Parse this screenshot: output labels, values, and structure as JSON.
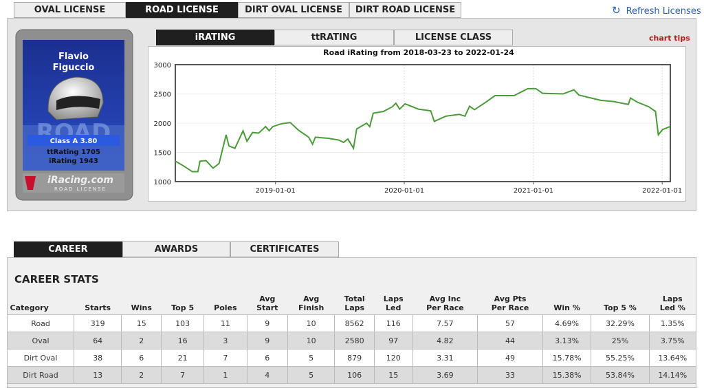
{
  "top_tabs": [
    "OVAL LICENSE",
    "ROAD LICENSE",
    "DIRT OVAL LICENSE",
    "DIRT ROAD LICENSE"
  ],
  "refresh": "Refresh Licenses",
  "card": {
    "name": [
      "Flavio",
      "Figuccio"
    ],
    "watermark": "ROAD",
    "class": "Class A 3.80",
    "ttrating": "ttRating 1705",
    "irating": "iRating 1943",
    "brand": "iRacing.com",
    "brand_sub": "ROAD LICENSE"
  },
  "chart_tabs": [
    "iRATING",
    "ttRATING",
    "LICENSE CLASS"
  ],
  "chart_tips": "chart tips",
  "chart_data": {
    "type": "line",
    "title": "Road iRating from 2018-03-23 to 2022-01-24",
    "color": "#4a9a3a",
    "grid": true,
    "x": [
      "2018-03-23",
      "2018-04-15",
      "2018-05-10",
      "2018-05-26",
      "2018-06-01",
      "2018-06-18",
      "2018-07-08",
      "2018-07-25",
      "2018-08-14",
      "2018-08-22",
      "2018-09-08",
      "2018-10-01",
      "2018-10-12",
      "2018-10-28",
      "2018-11-14",
      "2018-12-04",
      "2018-12-14",
      "2018-12-24",
      "2019-01-18",
      "2019-02-12",
      "2019-03-07",
      "2019-04-05",
      "2019-04-16",
      "2019-04-24",
      "2019-06-01",
      "2019-06-30",
      "2019-07-13",
      "2019-07-25",
      "2019-08-10",
      "2019-08-19",
      "2019-09-16",
      "2019-09-25",
      "2019-10-05",
      "2019-11-03",
      "2019-11-28",
      "2019-12-08",
      "2019-12-19",
      "2020-01-03",
      "2020-02-10",
      "2020-03-16",
      "2020-03-26",
      "2020-04-28",
      "2020-06-05",
      "2020-06-21",
      "2020-07-04",
      "2020-07-18",
      "2020-08-22",
      "2020-09-14",
      "2020-11-07",
      "2020-12-16",
      "2021-01-08",
      "2021-01-27",
      "2021-03-26",
      "2021-04-26",
      "2021-05-10",
      "2021-07-11",
      "2021-08-15",
      "2021-09-27",
      "2021-10-03",
      "2021-10-22",
      "2021-11-24",
      "2021-12-13",
      "2021-12-21",
      "2022-01-02",
      "2022-01-24"
    ],
    "values": [
      1350,
      1270,
      1170,
      1170,
      1350,
      1360,
      1230,
      1310,
      1800,
      1610,
      1570,
      1870,
      1690,
      1840,
      1830,
      1940,
      1870,
      1940,
      1990,
      2010,
      1880,
      1760,
      1640,
      1760,
      1740,
      1710,
      1670,
      1730,
      1570,
      1900,
      2000,
      1940,
      2170,
      2200,
      2280,
      2340,
      2240,
      2330,
      2240,
      2210,
      2030,
      2120,
      2150,
      2120,
      2290,
      2230,
      2370,
      2470,
      2470,
      2590,
      2590,
      2510,
      2500,
      2570,
      2480,
      2390,
      2370,
      2320,
      2430,
      2360,
      2280,
      2200,
      1800,
      1890,
      1943
    ],
    "xlim": [
      "2018-03-23",
      "2022-01-24"
    ],
    "xticks": [
      "2019-01-01",
      "2020-01-01",
      "2021-01-01",
      "2022-01-01"
    ],
    "ylim": [
      1000,
      3000
    ],
    "yticks": [
      1000,
      1500,
      2000,
      2500,
      3000
    ]
  },
  "career_tabs": [
    "CAREER",
    "AWARDS",
    "CERTIFICATES"
  ],
  "section_title": "CAREER STATS",
  "table": {
    "header": [
      [
        "Category"
      ],
      [
        "Starts"
      ],
      [
        "Wins"
      ],
      [
        "Top 5"
      ],
      [
        "Poles"
      ],
      [
        "Avg",
        "Start"
      ],
      [
        "Avg",
        "Finish"
      ],
      [
        "Total",
        "Laps"
      ],
      [
        "Laps",
        "Led"
      ],
      [
        "Avg Inc",
        "Per Race"
      ],
      [
        "Avg Pts",
        "Per Race"
      ],
      [
        "Win %"
      ],
      [
        "Top 5 %"
      ],
      [
        "Laps",
        "Led %"
      ]
    ],
    "rows": [
      [
        "Road",
        "319",
        "15",
        "103",
        "11",
        "9",
        "10",
        "8562",
        "116",
        "7.57",
        "57",
        "4.69%",
        "32.29%",
        "1.35%"
      ],
      [
        "Oval",
        "64",
        "2",
        "16",
        "3",
        "9",
        "10",
        "2580",
        "97",
        "4.82",
        "44",
        "3.13%",
        "25%",
        "3.75%"
      ],
      [
        "Dirt Oval",
        "38",
        "6",
        "21",
        "7",
        "6",
        "5",
        "879",
        "120",
        "3.31",
        "49",
        "15.78%",
        "55.25%",
        "13.64%"
      ],
      [
        "Dirt Road",
        "13",
        "2",
        "7",
        "1",
        "4",
        "5",
        "106",
        "15",
        "3.69",
        "33",
        "15.38%",
        "53.84%",
        "14.14%"
      ]
    ]
  }
}
